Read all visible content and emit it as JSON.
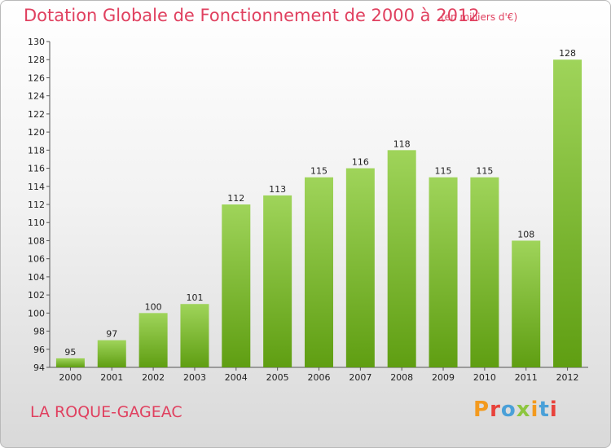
{
  "header": {
    "title": "Dotation Globale de Fonctionnement de 2000 à 2012",
    "unit_note": "(en milliers d'€)"
  },
  "footer": {
    "commune": "LA ROQUE-GAGEAC",
    "logo_text": "Proxiti",
    "logo_colors": [
      "#f39a1e",
      "#e8423b",
      "#4aa0d8",
      "#8dc63f",
      "#f39a1e",
      "#4aa0d8",
      "#e8423b"
    ]
  },
  "colors": {
    "bar_light": "#9fd45a",
    "bar_dark": "#5f9e12",
    "text_accent": "#e0405f"
  },
  "chart_data": {
    "type": "bar",
    "title": "Dotation Globale de Fonctionnement de 2000 à 2012",
    "xlabel": "",
    "ylabel": "",
    "categories": [
      "2000",
      "2001",
      "2002",
      "2003",
      "2004",
      "2005",
      "2006",
      "2007",
      "2008",
      "2009",
      "2010",
      "2011",
      "2012"
    ],
    "values": [
      95,
      97,
      100,
      101,
      112,
      113,
      115,
      116,
      118,
      115,
      115,
      108,
      128
    ],
    "ylim": [
      94,
      130
    ],
    "yticks": [
      94,
      96,
      98,
      100,
      102,
      104,
      106,
      108,
      110,
      112,
      114,
      116,
      118,
      120,
      122,
      124,
      126,
      128,
      130
    ],
    "grid": false,
    "legend": "none"
  }
}
